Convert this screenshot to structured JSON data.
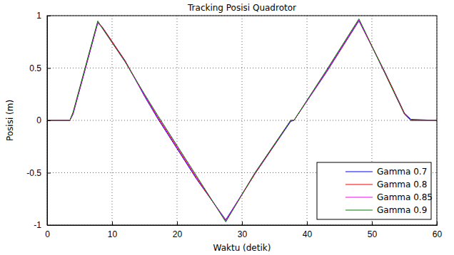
{
  "chart_data": {
    "type": "line",
    "title": "Tracking Posisi Quadrotor",
    "x_label": "Waktu (detik)",
    "y_label": "Posisi (m)",
    "x": [
      0,
      3.5,
      4,
      7.8,
      8.5,
      12,
      15,
      17,
      20,
      23,
      27.5,
      32,
      37.5,
      38,
      43,
      48,
      52,
      55,
      56,
      60
    ],
    "series": [
      {
        "name": "Gamma 0.7",
        "color": "#0000ff",
        "values": [
          0,
          0,
          0.06,
          0.93,
          0.89,
          0.57,
          0.23,
          0.02,
          -0.27,
          -0.56,
          -0.95,
          -0.51,
          -0.01,
          0,
          0.46,
          0.95,
          0.46,
          0.07,
          0.01,
          0
        ]
      },
      {
        "name": "Gamma 0.8",
        "color": "#ff0000",
        "values": [
          0,
          0,
          0.07,
          0.94,
          0.89,
          0.57,
          0.24,
          0.03,
          -0.26,
          -0.55,
          -0.96,
          -0.51,
          0,
          0,
          0.47,
          0.96,
          0.46,
          0.07,
          0,
          0
        ]
      },
      {
        "name": "Gamma 0.85",
        "color": "#ff00ff",
        "values": [
          0,
          0,
          0.07,
          0.94,
          0.88,
          0.56,
          0.24,
          0.04,
          -0.25,
          -0.54,
          -0.96,
          -0.5,
          0,
          0,
          0.47,
          0.96,
          0.45,
          0.06,
          0,
          0
        ]
      },
      {
        "name": "Gamma 0.9",
        "color": "#008000",
        "values": [
          0,
          0,
          0.08,
          0.95,
          0.88,
          0.56,
          0.25,
          0.05,
          -0.24,
          -0.53,
          -0.97,
          -0.5,
          0,
          0,
          0.48,
          0.97,
          0.45,
          0.06,
          0,
          0
        ]
      }
    ],
    "xlim": [
      0,
      60
    ],
    "ylim": [
      -1,
      1
    ],
    "xticks": [
      0,
      10,
      20,
      30,
      40,
      50,
      60
    ],
    "yticks": [
      -1,
      -0.5,
      0,
      0.5,
      1
    ],
    "grid": true,
    "legend": "lower right"
  }
}
